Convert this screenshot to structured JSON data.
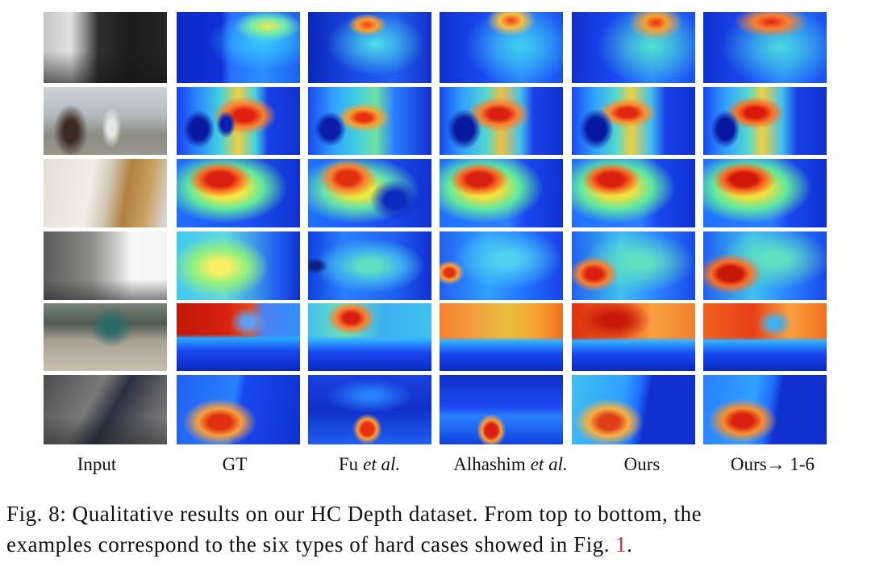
{
  "figure": {
    "columns": [
      {
        "label": "Input"
      },
      {
        "label": "GT"
      },
      {
        "label": "Fu",
        "suffix": "et al."
      },
      {
        "label": "Alhashim",
        "suffix": "et al."
      },
      {
        "label": "Ours"
      },
      {
        "label": "Ours→ 1-6"
      }
    ]
  },
  "caption": {
    "line1": "Fig. 8: Qualitative results on our HC Depth dataset. From top to bottom, the",
    "line2": "examples correspond to the six types of hard cases showed in Fig.",
    "ref": "1",
    "end": ".",
    "ref_color": "#e0261d"
  }
}
